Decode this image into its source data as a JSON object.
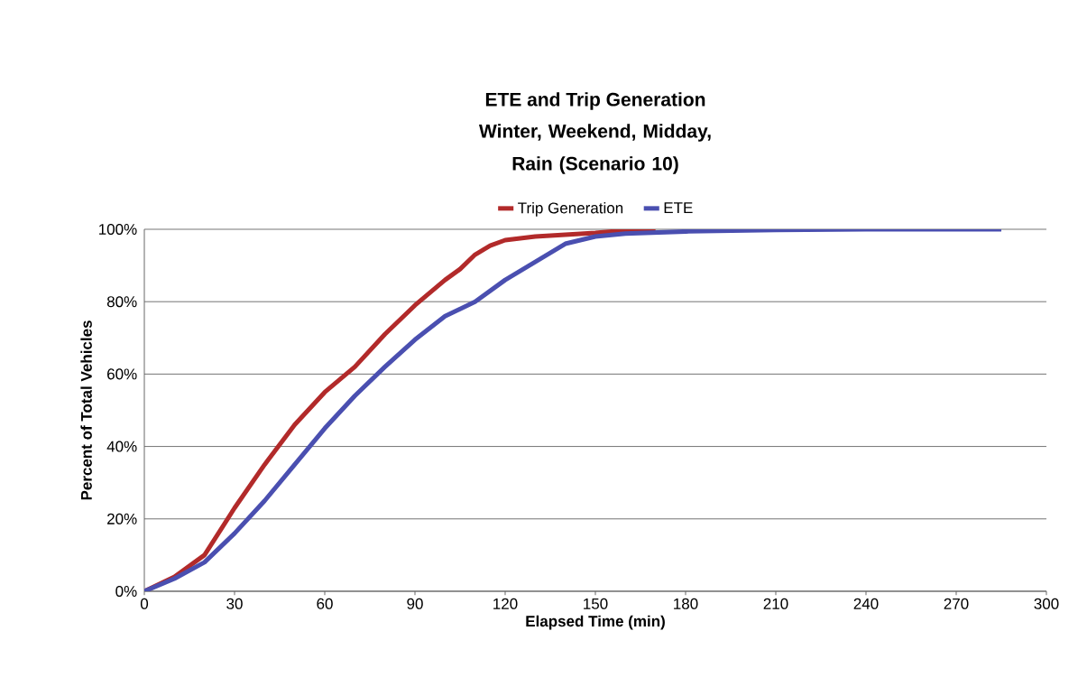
{
  "chart_data": {
    "type": "line",
    "title": "ETE and Trip Generation",
    "subtitle": "Winter, Weekend, Midday, Rain (Scenario 10)",
    "xlabel": "Elapsed Time (min)",
    "ylabel": "Percent of Total Vehicles",
    "series": [
      {
        "name": "Trip Generation",
        "color": "#b22a2a",
        "x": [
          0,
          10,
          20,
          30,
          40,
          50,
          60,
          70,
          80,
          90,
          100,
          105,
          110,
          115,
          120,
          130,
          140,
          150,
          160,
          170
        ],
        "values": [
          0,
          4,
          10,
          23,
          35,
          46,
          55,
          62,
          71,
          79,
          86,
          89,
          93,
          95.5,
          97,
          98,
          98.5,
          99,
          99.7,
          100
        ]
      },
      {
        "name": "ETE",
        "color": "#4a4fb0",
        "x": [
          0,
          10,
          20,
          30,
          40,
          50,
          60,
          70,
          80,
          90,
          100,
          110,
          120,
          130,
          140,
          150,
          160,
          180,
          210,
          240,
          285
        ],
        "values": [
          0,
          3.5,
          8,
          16,
          25,
          35,
          45,
          54,
          62,
          69.5,
          76,
          80,
          86,
          91,
          96,
          98,
          98.8,
          99.4,
          99.8,
          100,
          100
        ]
      }
    ],
    "xlim": [
      0,
      300
    ],
    "xticks": [
      0,
      30,
      60,
      90,
      120,
      150,
      180,
      210,
      240,
      270,
      300
    ],
    "ylim": [
      0,
      100
    ],
    "yticks": [
      {
        "value": 0,
        "label": "0%"
      },
      {
        "value": 20,
        "label": "20%"
      },
      {
        "value": 40,
        "label": "40%"
      },
      {
        "value": 60,
        "label": "60%"
      },
      {
        "value": 80,
        "label": "80%"
      },
      {
        "value": 100,
        "label": "100%"
      }
    ],
    "grid": "y",
    "legend": "top",
    "marker": "none",
    "line_style": "solid"
  }
}
